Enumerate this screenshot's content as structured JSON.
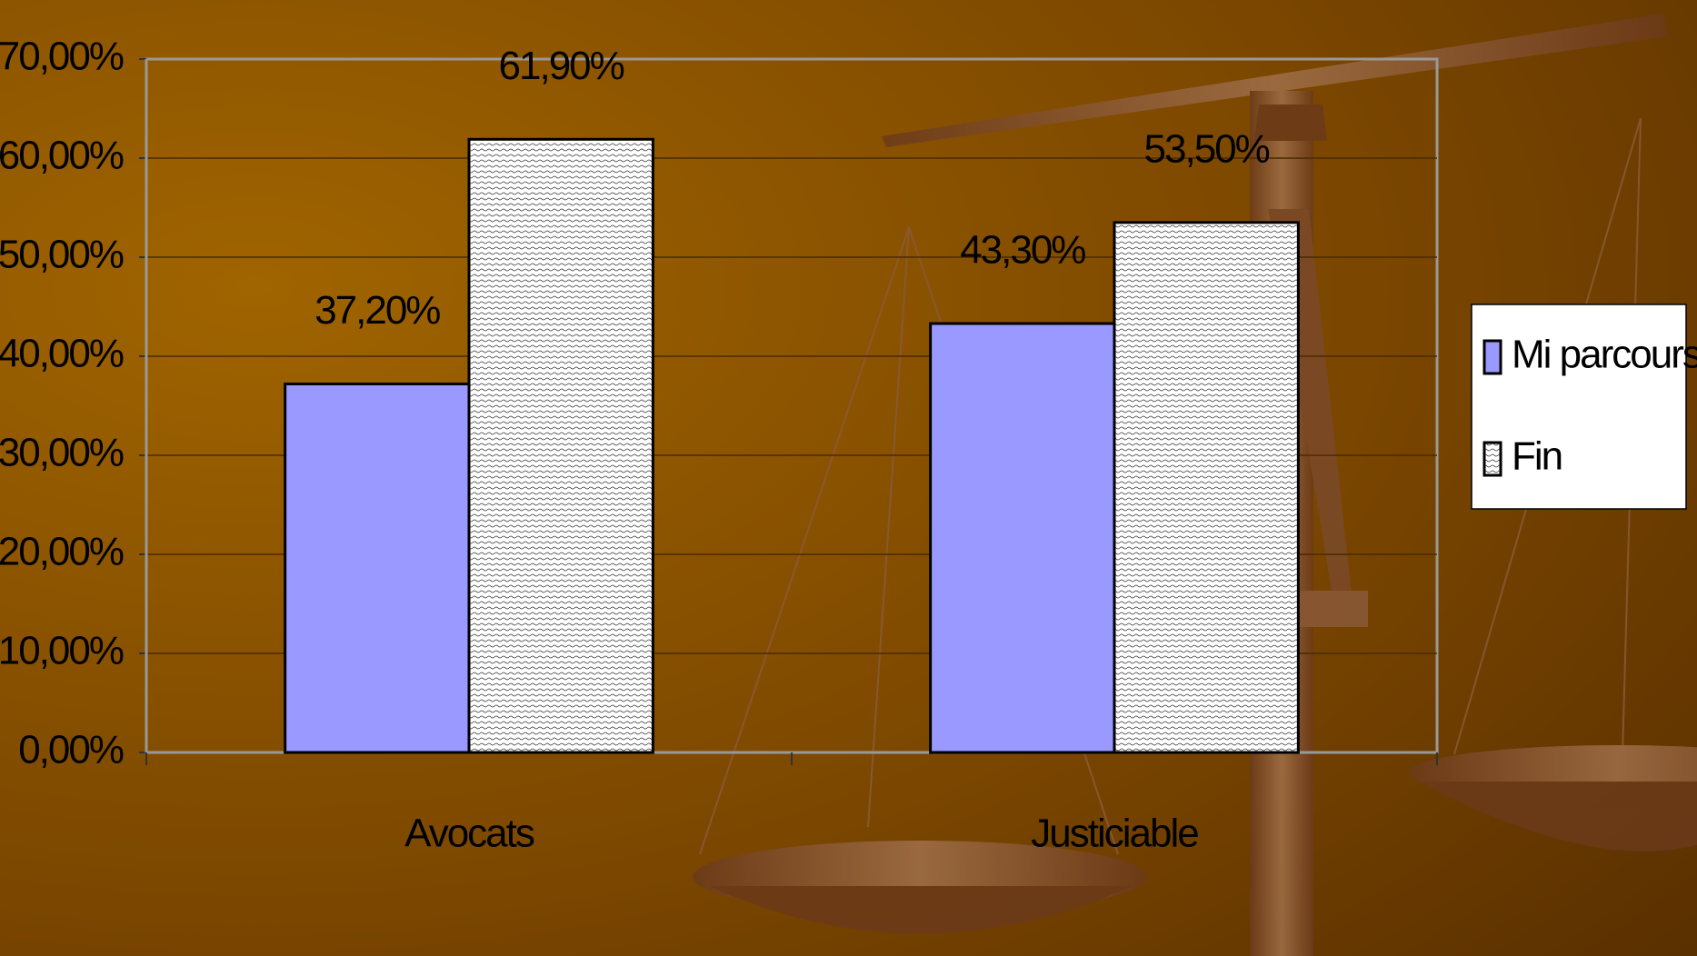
{
  "chart_data": {
    "type": "bar",
    "categories": [
      "Avocats",
      "Justiciable"
    ],
    "series": [
      {
        "name": "Mi parcours",
        "color": "#9999ff",
        "values": [
          37.2,
          43.3
        ],
        "value_labels": [
          "37,20%",
          "43,30%"
        ]
      },
      {
        "name": "Fin",
        "color": "#ffffff",
        "values": [
          61.9,
          53.5
        ],
        "value_labels": [
          "61,90%",
          "53,50%"
        ]
      }
    ],
    "ylim": [
      0,
      70
    ],
    "yticks": [
      {
        "value": 0,
        "label": "0,00%"
      },
      {
        "value": 10,
        "label": "10,00%"
      },
      {
        "value": 20,
        "label": "20,00%"
      },
      {
        "value": 30,
        "label": "30,00%"
      },
      {
        "value": 40,
        "label": "40,00%"
      },
      {
        "value": 50,
        "label": "50,00%"
      },
      {
        "value": 60,
        "label": "60,00%"
      },
      {
        "value": 70,
        "label": "70,00%"
      }
    ],
    "grid": true,
    "legend": "right"
  }
}
